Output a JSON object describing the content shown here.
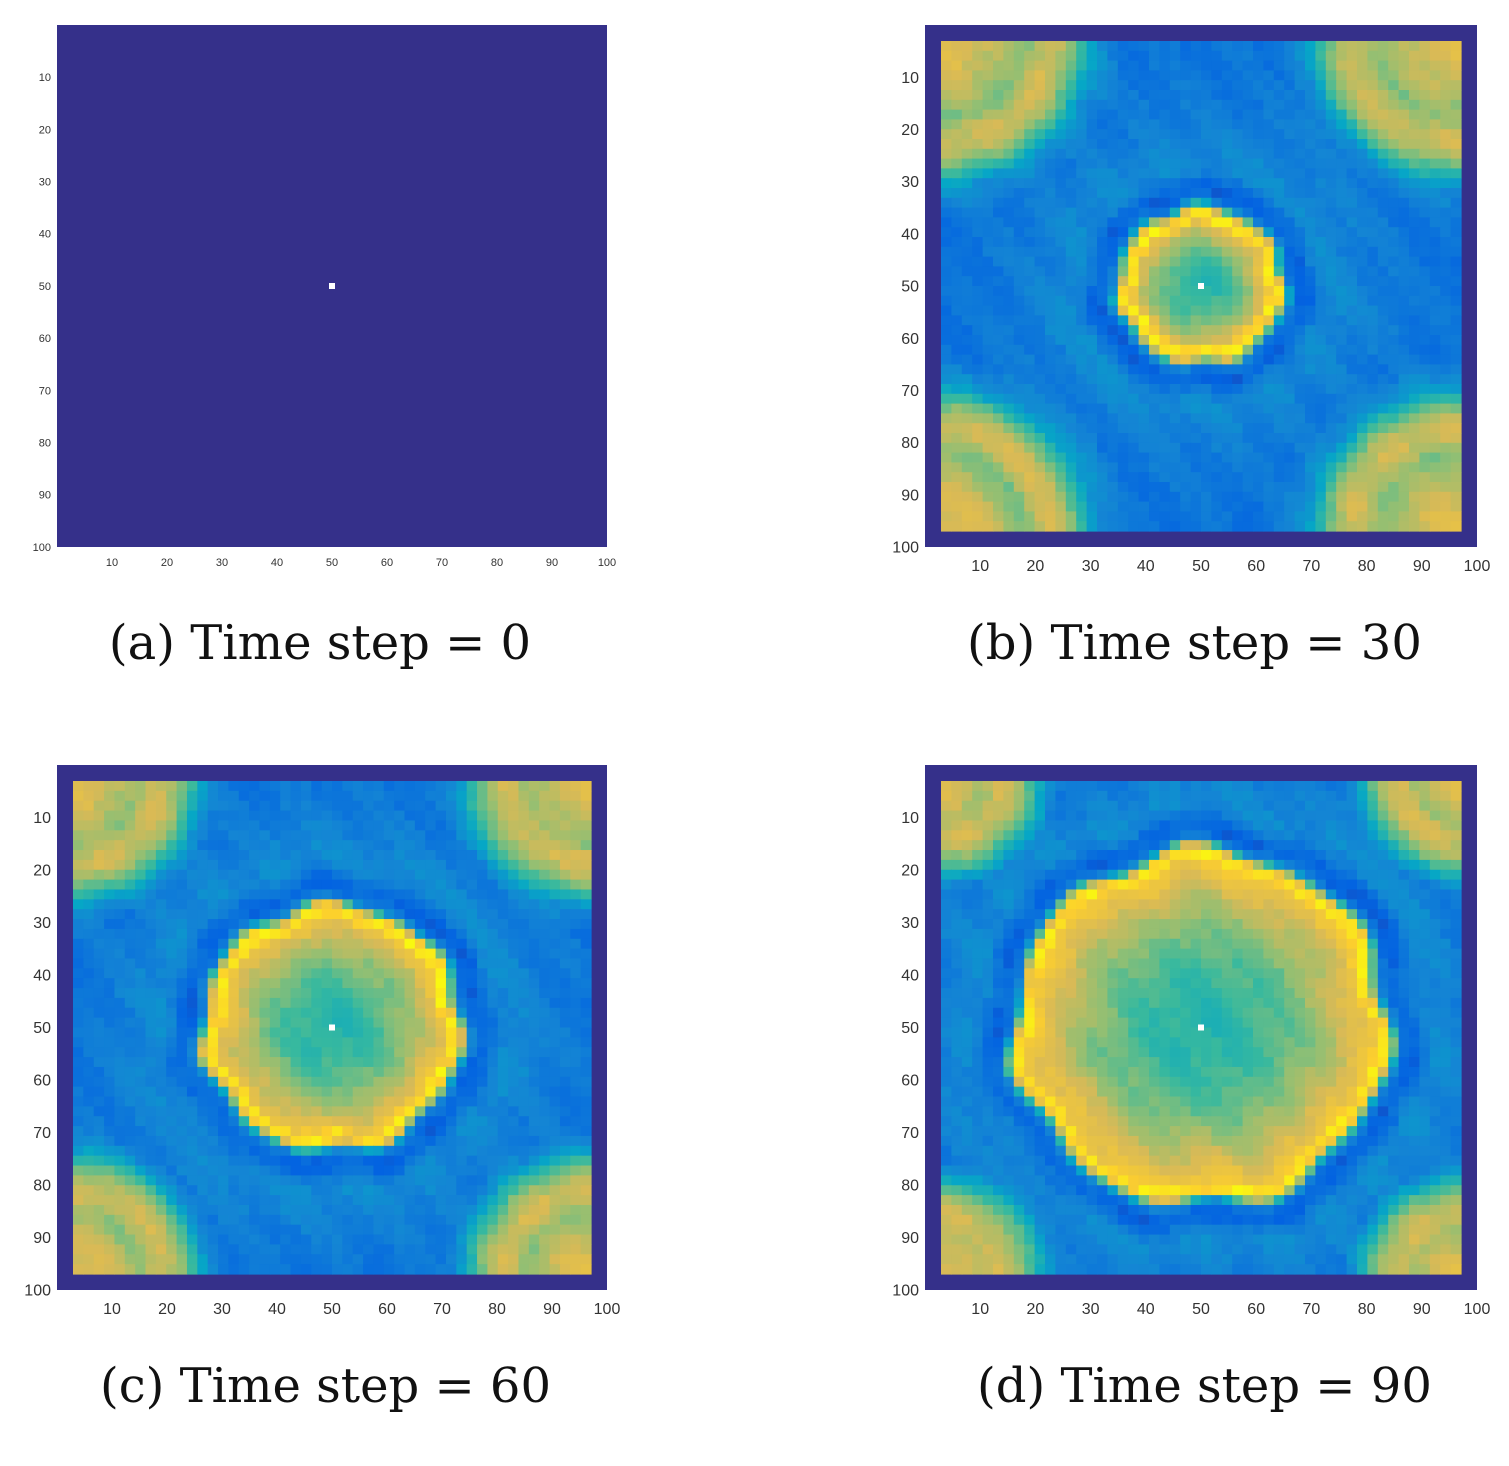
{
  "colors": {
    "colormap": [
      "#352a87",
      "#0363e1",
      "#1485d4",
      "#06a7c6",
      "#38b99e",
      "#92bf73",
      "#d9ba56",
      "#fcce2e",
      "#f9fb0e"
    ],
    "border": "#35308a",
    "source": "#ffffff"
  },
  "chart_data": [
    {
      "type": "heatmap",
      "caption": "(a) Time step = 0",
      "x_ticks": [
        "10",
        "20",
        "30",
        "40",
        "50",
        "60",
        "70",
        "80",
        "90",
        "100"
      ],
      "y_ticks": [
        "10",
        "20",
        "30",
        "40",
        "50",
        "60",
        "70",
        "80",
        "90",
        "100"
      ],
      "xlim": [
        1,
        100
      ],
      "ylim": [
        1,
        100
      ],
      "grid_size": 100,
      "time_step": 0,
      "source_point": [
        50,
        50
      ],
      "front_radius": 0,
      "pattern": "uniform-background-with-point-source"
    },
    {
      "type": "heatmap",
      "caption": "(b) Time step = 30",
      "x_ticks": [
        "10",
        "20",
        "30",
        "40",
        "50",
        "60",
        "70",
        "80",
        "90",
        "100"
      ],
      "y_ticks": [
        "10",
        "20",
        "30",
        "40",
        "50",
        "60",
        "70",
        "80",
        "90",
        "100"
      ],
      "xlim": [
        1,
        100
      ],
      "ylim": [
        1,
        100
      ],
      "grid_size": 100,
      "time_step": 30,
      "source_point": [
        50,
        50
      ],
      "front_radius": 14,
      "pattern": "expanding-ring"
    },
    {
      "type": "heatmap",
      "caption": "(c) Time step = 60",
      "x_ticks": [
        "10",
        "20",
        "30",
        "40",
        "50",
        "60",
        "70",
        "80",
        "90",
        "100"
      ],
      "y_ticks": [
        "10",
        "20",
        "30",
        "40",
        "50",
        "60",
        "70",
        "80",
        "90",
        "100"
      ],
      "xlim": [
        1,
        100
      ],
      "ylim": [
        1,
        100
      ],
      "grid_size": 100,
      "time_step": 60,
      "source_point": [
        50,
        50
      ],
      "front_radius": 23,
      "pattern": "expanding-ring"
    },
    {
      "type": "heatmap",
      "caption": "(d) Time step = 90",
      "x_ticks": [
        "10",
        "20",
        "30",
        "40",
        "50",
        "60",
        "70",
        "80",
        "90",
        "100"
      ],
      "y_ticks": [
        "10",
        "20",
        "30",
        "40",
        "50",
        "60",
        "70",
        "80",
        "90",
        "100"
      ],
      "xlim": [
        1,
        100
      ],
      "ylim": [
        1,
        100
      ],
      "grid_size": 100,
      "time_step": 90,
      "source_point": [
        50,
        50
      ],
      "front_radius": 34,
      "pattern": "expanding-ring"
    }
  ]
}
